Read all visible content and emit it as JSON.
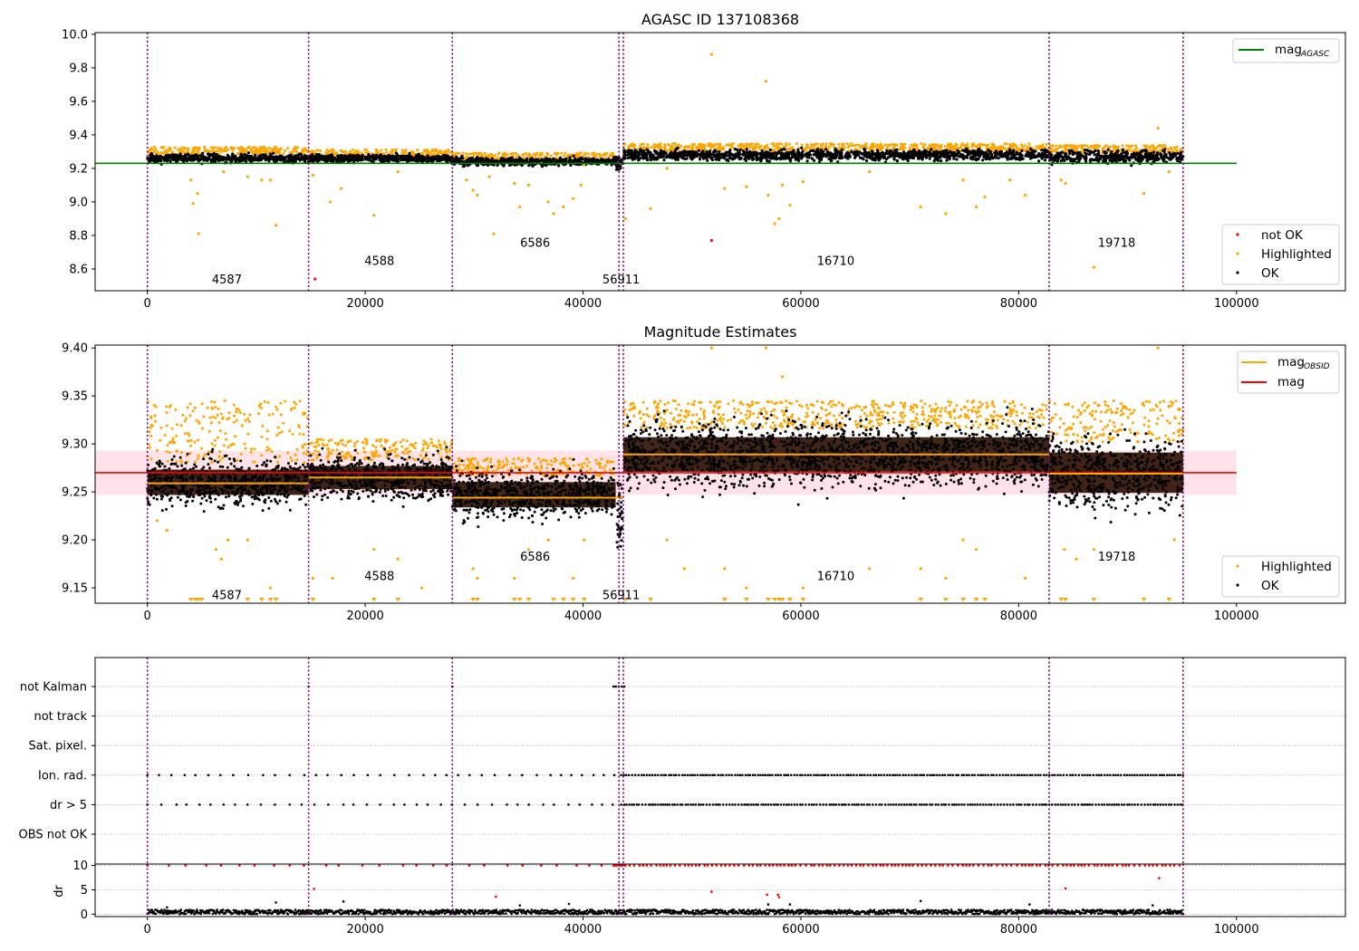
{
  "colors": {
    "ok": "#000000",
    "highlighted": "#ffa500",
    "not_ok": "#ff0000",
    "agasc_line": "#008000",
    "mag_line": "#ff0000",
    "mag_obsid_line": "#ffa500",
    "mag_band": "#ffc0cb",
    "obsid_boundary": "#800080",
    "grid": "#b0b0b0"
  },
  "chart_data": [
    {
      "type": "scatter",
      "title": "AGASC ID 137108368",
      "xlabel": "",
      "ylabel": "",
      "xlim": [
        -4800,
        110000
      ],
      "ylim": [
        8.47,
        10.01
      ],
      "x_ticks": [
        0,
        20000,
        40000,
        60000,
        80000,
        100000
      ],
      "y_ticks": [
        8.6,
        8.8,
        9.0,
        9.2,
        9.4,
        9.6,
        9.8,
        10.0
      ],
      "grid": false,
      "mag_agasc": 9.23,
      "mag_agasc_xrange": [
        -4800,
        100000
      ],
      "obsid_boundaries": [
        0,
        14800,
        28000,
        43300,
        43700,
        82800,
        95100
      ],
      "obsid_labels": [
        {
          "text": "4587",
          "x": 7300,
          "y": 8.54
        },
        {
          "text": "4588",
          "x": 21300,
          "y": 8.65
        },
        {
          "text": "6586",
          "x": 35600,
          "y": 8.76
        },
        {
          "text": "56911",
          "x": 43500,
          "y": 8.54
        },
        {
          "text": "16710",
          "x": 63200,
          "y": 8.65
        },
        {
          "text": "19718",
          "x": 89000,
          "y": 8.76
        }
      ],
      "segments": [
        {
          "x0": 0,
          "x1": 14800,
          "mean": 9.26,
          "spread": 0.035,
          "hl_level": 9.31
        },
        {
          "x0": 14800,
          "x1": 28000,
          "mean": 9.26,
          "spread": 0.03,
          "hl_level": 9.295
        },
        {
          "x0": 28000,
          "x1": 43000,
          "mean": 9.24,
          "spread": 0.032,
          "hl_level": 9.275
        },
        {
          "x0": 43700,
          "x1": 82800,
          "mean": 9.28,
          "spread": 0.045,
          "hl_level": 9.33
        },
        {
          "x0": 82800,
          "x1": 95100,
          "mean": 9.27,
          "spread": 0.05,
          "hl_level": 9.32
        }
      ],
      "outliers_highlighted": [
        [
          4000,
          9.13
        ],
        [
          4200,
          8.99
        ],
        [
          4600,
          9.05
        ],
        [
          4700,
          8.81
        ],
        [
          7000,
          9.18
        ],
        [
          9200,
          9.15
        ],
        [
          10500,
          9.13
        ],
        [
          11300,
          9.13
        ],
        [
          11800,
          8.86
        ],
        [
          15200,
          9.16
        ],
        [
          16800,
          9.0
        ],
        [
          17800,
          9.08
        ],
        [
          20800,
          8.92
        ],
        [
          23000,
          9.18
        ],
        [
          29300,
          9.13
        ],
        [
          29900,
          9.07
        ],
        [
          30300,
          9.04
        ],
        [
          31400,
          9.15
        ],
        [
          31800,
          8.81
        ],
        [
          33700,
          9.11
        ],
        [
          34200,
          8.97
        ],
        [
          35000,
          9.1
        ],
        [
          36800,
          9.0
        ],
        [
          37300,
          8.93
        ],
        [
          38200,
          8.97
        ],
        [
          39100,
          9.02
        ],
        [
          39800,
          9.1
        ],
        [
          40100,
          9.22
        ],
        [
          43900,
          8.9
        ],
        [
          46200,
          8.96
        ],
        [
          47700,
          9.2
        ],
        [
          51800,
          9.88
        ],
        [
          53000,
          9.08
        ],
        [
          55000,
          9.09
        ],
        [
          56800,
          9.72
        ],
        [
          57000,
          9.04
        ],
        [
          57600,
          8.87
        ],
        [
          58000,
          8.9
        ],
        [
          58300,
          9.1
        ],
        [
          59000,
          8.98
        ],
        [
          60200,
          9.12
        ],
        [
          66300,
          9.18
        ],
        [
          71000,
          8.97
        ],
        [
          73300,
          8.93
        ],
        [
          74900,
          9.13
        ],
        [
          76100,
          8.97
        ],
        [
          76900,
          9.03
        ],
        [
          79200,
          9.13
        ],
        [
          80600,
          9.04
        ],
        [
          83900,
          9.13
        ],
        [
          84300,
          9.11
        ],
        [
          86900,
          8.61
        ],
        [
          91500,
          9.05
        ],
        [
          92800,
          9.44
        ],
        [
          93800,
          9.18
        ]
      ],
      "outliers_not_ok": [
        [
          15400,
          8.54
        ],
        [
          51800,
          8.77
        ]
      ],
      "legend_upper": {
        "position": "upper right",
        "entries": [
          {
            "label": "mag",
            "sub": "AGASC",
            "color": "#008000"
          }
        ]
      },
      "legend_lower": {
        "position": "lower right",
        "entries": [
          {
            "label": "not OK",
            "color": "#ff0000"
          },
          {
            "label": "Highlighted",
            "color": "#ffa500"
          },
          {
            "label": "OK",
            "color": "#000000"
          }
        ]
      }
    },
    {
      "type": "scatter",
      "title": "Magnitude Estimates",
      "xlabel": "",
      "ylabel": "",
      "xlim": [
        -4800,
        110000
      ],
      "ylim": [
        9.134,
        9.403
      ],
      "x_ticks": [
        0,
        20000,
        40000,
        60000,
        80000,
        100000
      ],
      "y_ticks": [
        9.15,
        9.2,
        9.25,
        9.3,
        9.35,
        9.4
      ],
      "grid": false,
      "mag": 9.27,
      "mag_band": [
        9.247,
        9.293
      ],
      "mag_xrange": [
        -4800,
        100000
      ],
      "mag_obsid": [
        {
          "x0": 0,
          "x1": 14800,
          "value": 9.259
        },
        {
          "x0": 14800,
          "x1": 28000,
          "value": 9.265
        },
        {
          "x0": 28000,
          "x1": 43000,
          "value": 9.244
        },
        {
          "x0": 43000,
          "x1": 43700,
          "value": 9.244
        },
        {
          "x0": 43700,
          "x1": 82800,
          "value": 9.289
        },
        {
          "x0": 82800,
          "x1": 95100,
          "value": 9.269
        }
      ],
      "obsid_boundaries": [
        0,
        14800,
        28000,
        43300,
        43700,
        82800,
        95100
      ],
      "obsid_labels": [
        {
          "text": "4587",
          "x": 7300,
          "y": 9.143
        },
        {
          "text": "4588",
          "x": 21300,
          "y": 9.163
        },
        {
          "text": "6586",
          "x": 35600,
          "y": 9.183
        },
        {
          "text": "56911",
          "x": 43500,
          "y": 9.143
        },
        {
          "text": "16710",
          "x": 63200,
          "y": 9.163
        },
        {
          "text": "19718",
          "x": 89000,
          "y": 9.183
        }
      ],
      "segments": [
        {
          "x0": 0,
          "x1": 14800,
          "mean": 9.26,
          "spread": 0.022,
          "hl_top": 9.345
        },
        {
          "x0": 14800,
          "x1": 28000,
          "mean": 9.265,
          "spread": 0.02,
          "hl_top": 9.305
        },
        {
          "x0": 28000,
          "x1": 43000,
          "mean": 9.247,
          "spread": 0.022,
          "hl_top": 9.285
        },
        {
          "x0": 43700,
          "x1": 82800,
          "mean": 9.289,
          "spread": 0.03,
          "hl_top": 9.345
        },
        {
          "x0": 82800,
          "x1": 95100,
          "mean": 9.27,
          "spread": 0.035,
          "hl_top": 9.345
        }
      ],
      "outliers_highlighted": [
        [
          900,
          9.22
        ],
        [
          1800,
          9.21
        ],
        [
          6300,
          9.19
        ],
        [
          6800,
          9.18
        ],
        [
          7400,
          9.2
        ],
        [
          9200,
          9.2
        ],
        [
          11300,
          9.15
        ],
        [
          15200,
          9.16
        ],
        [
          17000,
          9.16
        ],
        [
          20800,
          9.19
        ],
        [
          23000,
          9.18
        ],
        [
          25200,
          9.15
        ],
        [
          29900,
          9.17
        ],
        [
          30300,
          9.16
        ],
        [
          33700,
          9.16
        ],
        [
          35000,
          9.19
        ],
        [
          36800,
          9.2
        ],
        [
          39100,
          9.16
        ],
        [
          40100,
          9.2
        ],
        [
          47700,
          9.2
        ],
        [
          49300,
          9.17
        ],
        [
          51800,
          9.4
        ],
        [
          53000,
          9.17
        ],
        [
          55000,
          9.15
        ],
        [
          56800,
          9.4
        ],
        [
          58300,
          9.37
        ],
        [
          60200,
          9.15
        ],
        [
          66300,
          9.17
        ],
        [
          71000,
          9.17
        ],
        [
          73300,
          9.16
        ],
        [
          74900,
          9.2
        ],
        [
          76100,
          9.19
        ],
        [
          80600,
          9.16
        ],
        [
          84200,
          9.19
        ],
        [
          85300,
          9.18
        ],
        [
          86900,
          9.19
        ],
        [
          92800,
          9.4
        ],
        [
          94300,
          9.2
        ]
      ],
      "clipped_markers_x": [
        4000,
        4400,
        4700,
        5000,
        9200,
        10500,
        11300,
        11800,
        15200,
        20800,
        23000,
        29900,
        30300,
        33700,
        34200,
        35000,
        37300,
        38200,
        39100,
        40100,
        43900,
        46200,
        53000,
        55000,
        57000,
        57600,
        58000,
        58300,
        59000,
        60200,
        71000,
        73300,
        74900,
        76100,
        76900,
        83900,
        84300,
        86900,
        91500,
        93800
      ],
      "legend_upper": {
        "position": "upper right",
        "entries": [
          {
            "label": "mag",
            "sub": "OBSID",
            "color": "#ffa500"
          },
          {
            "label": "mag",
            "sub": "",
            "color": "#ff0000"
          }
        ]
      },
      "legend_lower": {
        "position": "lower right",
        "entries": [
          {
            "label": "Highlighted",
            "color": "#ffa500"
          },
          {
            "label": "OK",
            "color": "#000000"
          }
        ]
      }
    },
    {
      "type": "scatter",
      "title": "",
      "xlabel": "",
      "ylabel": "",
      "xlim": [
        -4800,
        110000
      ],
      "categories": [
        "not Kalman",
        "not track",
        "Sat. pixel.",
        "Ion. rad.",
        "dr > 5",
        "OBS not OK"
      ],
      "grid": true,
      "obsid_boundaries": [
        0,
        14800,
        28000,
        43300,
        43700,
        82800,
        95100
      ],
      "flags": {
        "not Kalman": {
          "points_x": [
            14800,
            28000
          ],
          "dense_ranges": [
            [
              42800,
              43900
            ]
          ]
        },
        "not track": {
          "points_x": [],
          "dense_ranges": []
        },
        "Sat. pixel.": {
          "points_x": [],
          "dense_ranges": []
        },
        "Ion. rad.": {
          "sparse_ranges": [
            [
              0,
              43000
            ]
          ],
          "dense_ranges": [
            [
              43500,
              95100
            ]
          ]
        },
        "dr > 5": {
          "sparse_ranges": [
            [
              0,
              43000
            ]
          ],
          "dense_ranges": [
            [
              43500,
              95100
            ]
          ]
        },
        "OBS not OK": {
          "points_x": [],
          "dense_ranges": []
        }
      }
    },
    {
      "type": "scatter",
      "title": "",
      "xlabel": "",
      "ylabel": "dr",
      "xlim": [
        -4800,
        110000
      ],
      "ylim": [
        -0.5,
        10.3
      ],
      "x_ticks": [
        0,
        20000,
        40000,
        60000,
        80000,
        100000
      ],
      "y_ticks": [
        0,
        5,
        10
      ],
      "grid": true,
      "obsid_boundaries": [
        0,
        14800,
        28000,
        43300,
        43700,
        82800,
        95100
      ],
      "clipped_value": 10,
      "ok_band": [
        0,
        0.9
      ],
      "not_ok_points": [
        [
          15300,
          5.2
        ],
        [
          32000,
          3.6
        ],
        [
          51800,
          4.6
        ],
        [
          56900,
          4.0
        ],
        [
          57900,
          4.0
        ],
        [
          58000,
          3.5
        ],
        [
          84300,
          5.3
        ],
        [
          92900,
          7.4
        ]
      ],
      "ok_outliers": [
        [
          1800,
          1.4
        ],
        [
          11800,
          2.4
        ],
        [
          18000,
          2.6
        ],
        [
          34200,
          1.8
        ],
        [
          38700,
          2.1
        ],
        [
          57000,
          2.0
        ],
        [
          59000,
          2.0
        ],
        [
          71000,
          2.7
        ],
        [
          81000,
          2.0
        ],
        [
          92300,
          1.8
        ]
      ]
    }
  ]
}
